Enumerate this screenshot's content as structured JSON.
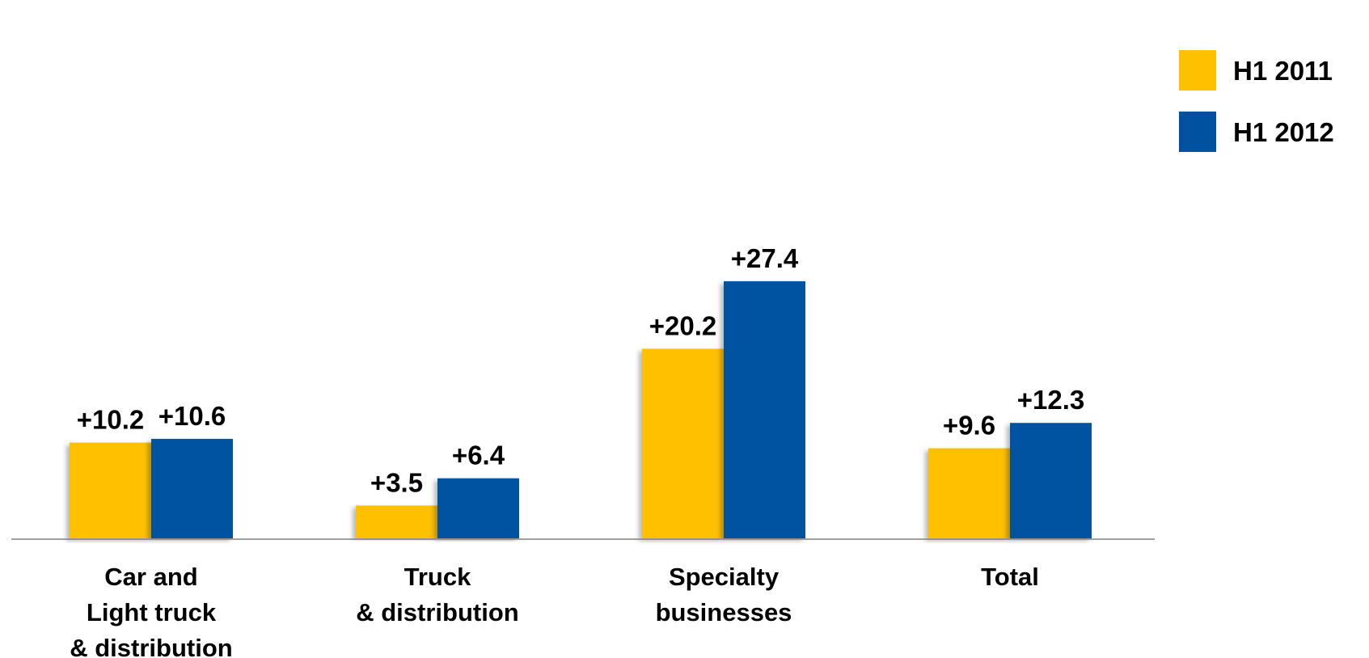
{
  "chart_data": {
    "type": "bar",
    "categories": [
      [
        "Car and",
        "Light truck",
        "& distribution"
      ],
      [
        "Truck",
        "& distribution"
      ],
      [
        "Specialty",
        "businesses"
      ],
      [
        "Total"
      ]
    ],
    "series": [
      {
        "name": "H1 2011",
        "color": "#FFC000",
        "values": [
          10.2,
          3.5,
          20.2,
          9.6
        ],
        "labels": [
          "+10.2",
          "+3.5",
          "+20.2",
          "+9.6"
        ]
      },
      {
        "name": "H1 2012",
        "color": "#0052A0",
        "values": [
          10.6,
          6.4,
          27.4,
          12.3
        ],
        "labels": [
          "+10.6",
          "+6.4",
          "+27.4",
          "+12.3"
        ]
      }
    ],
    "legend_position": "top-right",
    "ylim": [
      0,
      30
    ],
    "grid": false,
    "axis_color": "#808080"
  }
}
